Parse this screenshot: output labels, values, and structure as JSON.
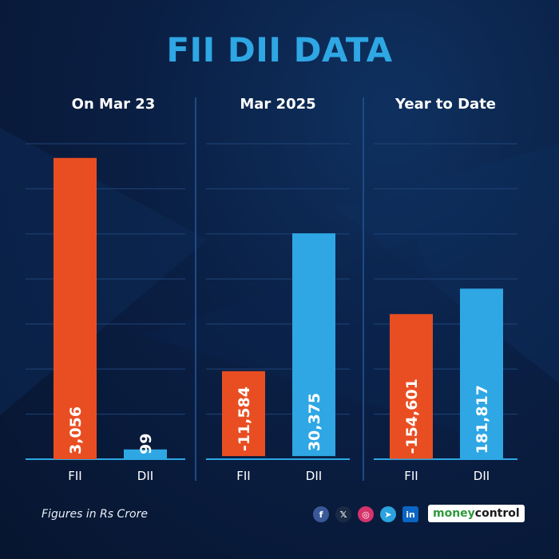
{
  "header": {
    "title": "FII DII DATA"
  },
  "footer": {
    "note": "Figures in Rs Crore",
    "brand_part1": "money",
    "brand_part2": "control",
    "social_icons": [
      "facebook-icon",
      "x-icon",
      "instagram-icon",
      "telegram-icon",
      "linkedin-icon"
    ]
  },
  "colors": {
    "fii": "#e94e22",
    "dii": "#2ea7e4",
    "title": "#2ea7e4",
    "background": "#0a1f44"
  },
  "chart_data": [
    {
      "type": "bar",
      "title": "On Mar 23",
      "categories": [
        "FII",
        "DII"
      ],
      "values": [
        3056,
        99
      ],
      "value_labels": [
        "3,056",
        "99"
      ],
      "ylim": [
        0,
        3200
      ]
    },
    {
      "type": "bar",
      "title": "Mar 2025",
      "categories": [
        "FII",
        "DII"
      ],
      "values": [
        -11584,
        30375
      ],
      "value_labels": [
        "-11,584",
        "30,375"
      ],
      "ylim": [
        -12000,
        31000
      ]
    },
    {
      "type": "bar",
      "title": "Year to Date",
      "categories": [
        "FII",
        "DII"
      ],
      "values": [
        -154601,
        181817
      ],
      "value_labels": [
        "-154,601",
        "181,817"
      ],
      "ylim": [
        -155000,
        182000
      ]
    }
  ]
}
